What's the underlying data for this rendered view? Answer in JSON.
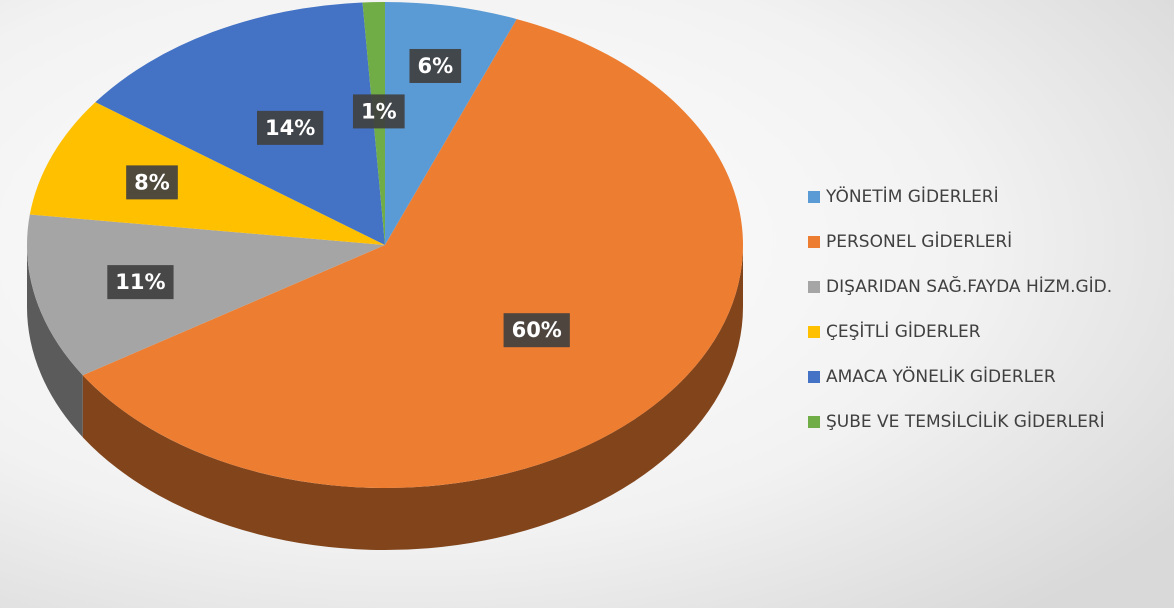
{
  "chart_data": {
    "type": "pie",
    "categories": [
      "YÖNETİM GİDERLERİ",
      "PERSONEL GİDERLERİ",
      "DIŞARIDAN SAĞ.FAYDA HİZM.GİD.",
      "ÇEŞİTLİ GİDERLER",
      "AMACA YÖNELİK GİDERLER",
      "ŞUBE VE TEMSİLCİLİK GİDERLERİ"
    ],
    "values": [
      6,
      60,
      11,
      8,
      14,
      1
    ],
    "value_labels": [
      "6%",
      "60%",
      "11%",
      "8%",
      "14%",
      "1%"
    ],
    "colors": [
      "#5b9bd5",
      "#ed7d31",
      "#a5a5a5",
      "#ffc000",
      "#4472c4",
      "#70ad47"
    ],
    "legend": "right"
  }
}
